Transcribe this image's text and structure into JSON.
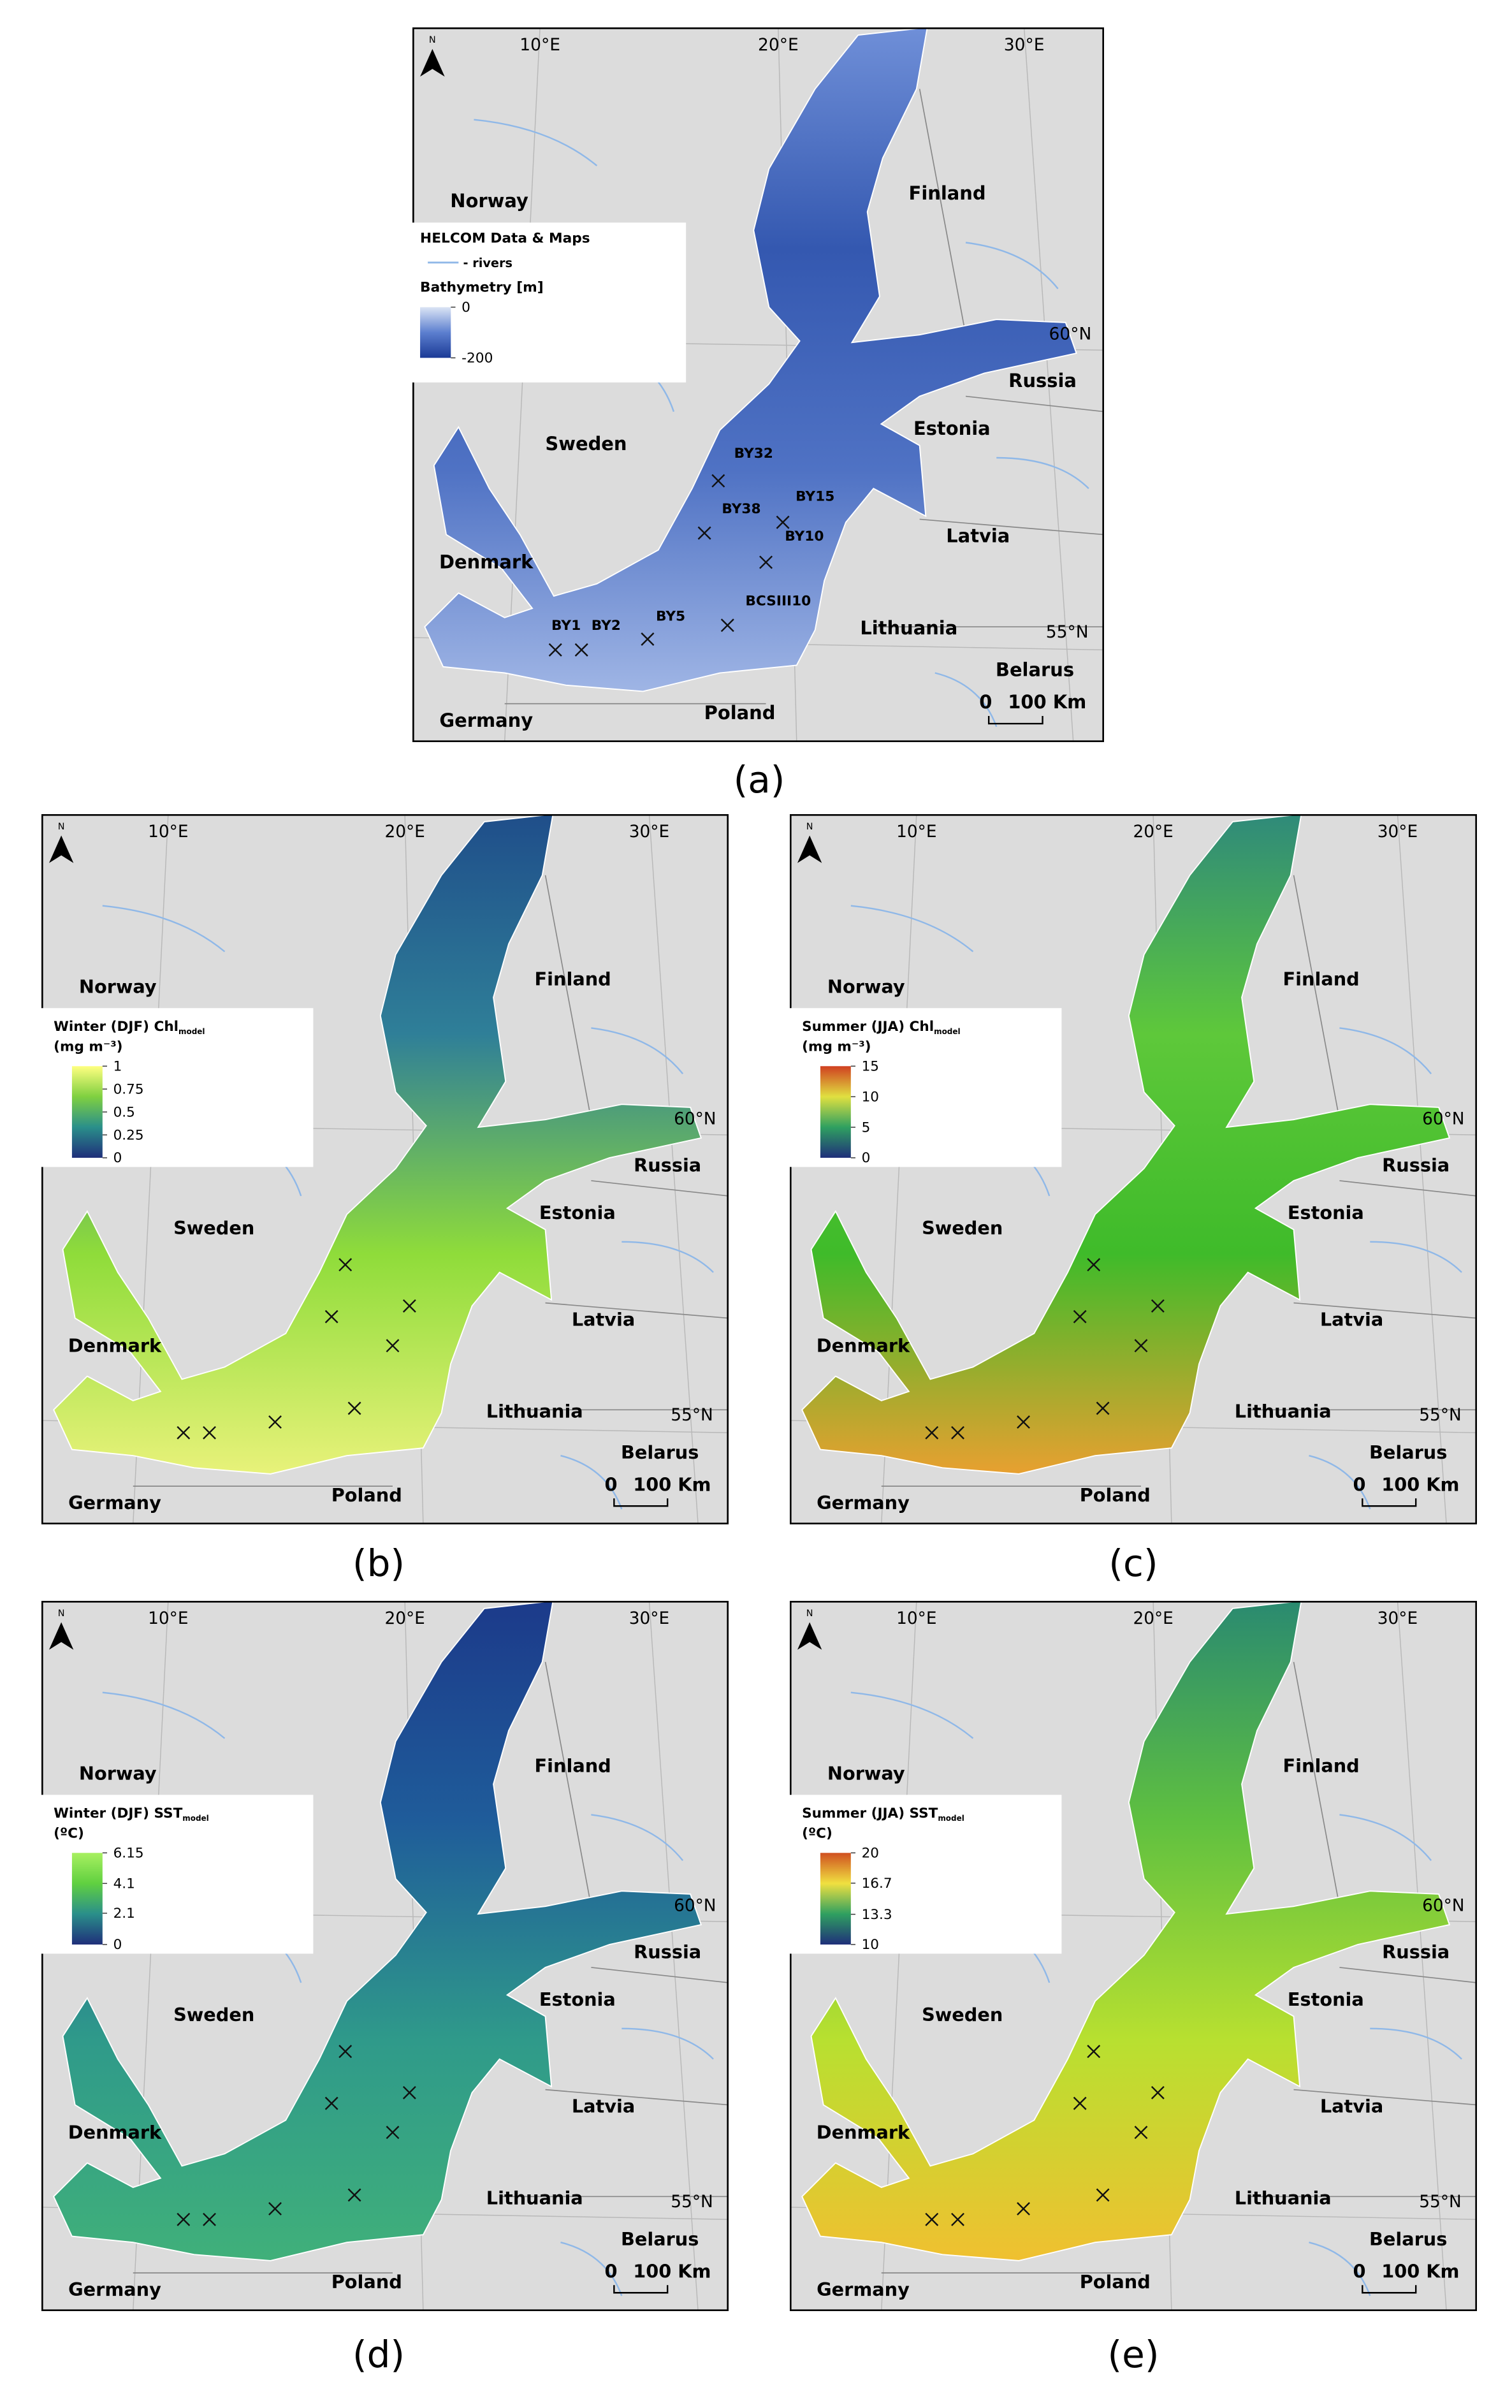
{
  "panels": [
    {
      "caption": "(a)",
      "north": "N",
      "lon_labels": [
        "10°E",
        "20°E",
        "30°E"
      ],
      "lat_labels": [
        "60°N",
        "55°N"
      ],
      "countries": [
        "Norway",
        "Finland",
        "Russia",
        "Sweden",
        "Estonia",
        "Latvia",
        "Denmark",
        "Lithuania",
        "Belarus",
        "Germany",
        "Poland"
      ],
      "scale": [
        "0",
        "100 Km"
      ],
      "legend": {
        "source": "HELCOM Data & Maps",
        "rivers": "- rivers",
        "title": "Bathymetry [m]",
        "lim": [
          -200,
          0
        ],
        "ticks": [
          0,
          -200
        ],
        "colors": [
          "#1b3a96",
          "#5c7fcf",
          "#dbe4f5"
        ]
      },
      "sea_colors": [
        "#6f8fd8",
        "#3458b0",
        "#4f72c4",
        "#9fb5e5"
      ],
      "stations": [
        "BY1",
        "BY2",
        "BY5",
        "BCSIII10",
        "BY10",
        "BY15",
        "BY38",
        "BY32"
      ]
    },
    {
      "caption": "(b)",
      "north": "N",
      "lon_labels": [
        "10°E",
        "20°E",
        "30°E"
      ],
      "lat_labels": [
        "60°N",
        "55°N"
      ],
      "countries": [
        "Norway",
        "Finland",
        "Russia",
        "Sweden",
        "Estonia",
        "Latvia",
        "Denmark",
        "Lithuania",
        "Belarus",
        "Germany",
        "Poland"
      ],
      "scale": [
        "0",
        "100 Km"
      ],
      "legend": {
        "title": "Winter (DJF) Chl",
        "title_sub": "model",
        "unit": "(mg m⁻³)",
        "lim": [
          0,
          1
        ],
        "ticks": [
          1,
          0.75,
          0.5,
          0.25,
          0
        ],
        "colors": [
          "#1f2f7a",
          "#2a8f8a",
          "#7fd040",
          "#ffff80"
        ]
      },
      "sea_colors": [
        "#1f4e8a",
        "#2f7f98",
        "#8fdc3a",
        "#e8f27a"
      ]
    },
    {
      "caption": "(c)",
      "north": "N",
      "lon_labels": [
        "10°E",
        "20°E",
        "30°E"
      ],
      "lat_labels": [
        "60°N",
        "55°N"
      ],
      "countries": [
        "Norway",
        "Finland",
        "Russia",
        "Sweden",
        "Estonia",
        "Latvia",
        "Denmark",
        "Lithuania",
        "Belarus",
        "Germany",
        "Poland"
      ],
      "scale": [
        "0",
        "100 Km"
      ],
      "legend": {
        "title": "Summer (JJA) Chl",
        "title_sub": "model",
        "unit": "(mg m⁻³)",
        "lim": [
          0,
          15
        ],
        "ticks": [
          15,
          10,
          5,
          0
        ],
        "colors": [
          "#1f2f7a",
          "#2fa060",
          "#e0e040",
          "#d04020"
        ]
      },
      "sea_colors": [
        "#2f8a7a",
        "#5ec83a",
        "#3fbb2a",
        "#e8a030"
      ]
    },
    {
      "caption": "(d)",
      "north": "N",
      "lon_labels": [
        "10°E",
        "20°E",
        "30°E"
      ],
      "lat_labels": [
        "60°N",
        "55°N"
      ],
      "countries": [
        "Norway",
        "Finland",
        "Russia",
        "Sweden",
        "Estonia",
        "Latvia",
        "Denmark",
        "Lithuania",
        "Belarus",
        "Germany",
        "Poland"
      ],
      "scale": [
        "0",
        "100 Km"
      ],
      "legend": {
        "title": "Winter (DJF) SST",
        "title_sub": "model",
        "unit": "(ºC)",
        "lim": [
          0,
          6.15
        ],
        "ticks": [
          6.15,
          4.1,
          2.1,
          0
        ],
        "colors": [
          "#1f2f7a",
          "#2a8f8a",
          "#60d040",
          "#a8f060"
        ]
      },
      "sea_colors": [
        "#1c3a8a",
        "#1f5c9a",
        "#2f9a8a",
        "#40b07a"
      ]
    },
    {
      "caption": "(e)",
      "north": "N",
      "lon_labels": [
        "10°E",
        "20°E",
        "30°E"
      ],
      "lat_labels": [
        "60°N",
        "55°N"
      ],
      "countries": [
        "Norway",
        "Finland",
        "Russia",
        "Sweden",
        "Estonia",
        "Latvia",
        "Denmark",
        "Lithuania",
        "Belarus",
        "Germany",
        "Poland"
      ],
      "scale": [
        "0",
        "100 Km"
      ],
      "legend": {
        "title": "Summer (JJA) SST",
        "title_sub": "model",
        "unit": "(ºC)",
        "lim": [
          10,
          20
        ],
        "ticks": [
          20,
          16.7,
          13.3,
          10
        ],
        "colors": [
          "#1f2f7a",
          "#2fa060",
          "#f0e040",
          "#d05020"
        ]
      },
      "sea_colors": [
        "#2a8a70",
        "#5fc040",
        "#b8e030",
        "#f0c030"
      ]
    }
  ]
}
